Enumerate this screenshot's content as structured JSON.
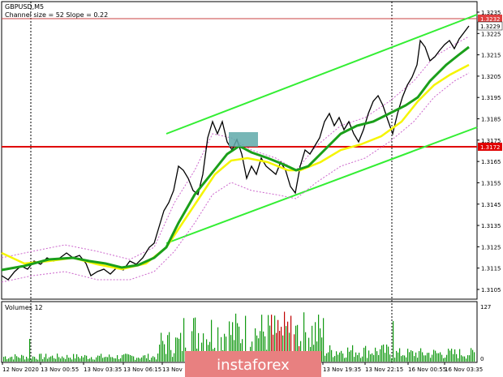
{
  "header": {
    "symbol_label": "GBPUSD,M5",
    "indicator_label": "Channel size = 52 Slope = 0.22"
  },
  "price_axis": {
    "ticks": [
      "1.3235",
      "1.3225",
      "1.3215",
      "1.3205",
      "1.3195",
      "1.3185",
      "1.3175",
      "1.3165",
      "1.3155",
      "1.3145",
      "1.3135",
      "1.3125",
      "1.3115",
      "1.3105"
    ],
    "top_flag": "1.3232",
    "current_flag": "1.3229",
    "level_flag": "1.3172"
  },
  "volume_panel": {
    "label": "Volumes 12",
    "max_label": "127",
    "zero_label": "0"
  },
  "time_axis": {
    "labels": [
      "12 Nov 2020",
      "13 Nov 00:55",
      "13 Nov 03:35",
      "13 Nov 06:15",
      "13 Nov",
      "13 Nov 19:35",
      "13 Nov 22:15",
      "16 Nov 00:55",
      "16 Nov 03:35"
    ]
  },
  "watermark": {
    "text": "instaforex"
  },
  "colors": {
    "background": "#ffffff",
    "price_line": "#000000",
    "ma_green": "#1a9f1a",
    "ma_yellow": "#f5f500",
    "channel": "#33ee33",
    "envelope": "#cc66cc",
    "level_line": "#e00000",
    "volume_bar": "#119911",
    "watermark_bg": "#e88080",
    "box": "#5fa9a9"
  },
  "chart_data": {
    "type": "line",
    "series": [
      {
        "name": "GBPUSD",
        "x": [
          "12 Nov 2020",
          "13 Nov 00:55",
          "13 Nov 03:35",
          "13 Nov 06:15",
          "13 Nov",
          "13 Nov 19:35",
          "13 Nov 22:15",
          "16 Nov 00:55",
          "16 Nov 03:35"
        ],
        "values": [
          1.311,
          1.3118,
          1.3112,
          1.3125,
          1.3183,
          1.317,
          1.3185,
          1.3208,
          1.3229
        ]
      }
    ],
    "ylim": [
      1.31,
      1.324
    ],
    "level": 1.3172,
    "volume_max": 127
  }
}
